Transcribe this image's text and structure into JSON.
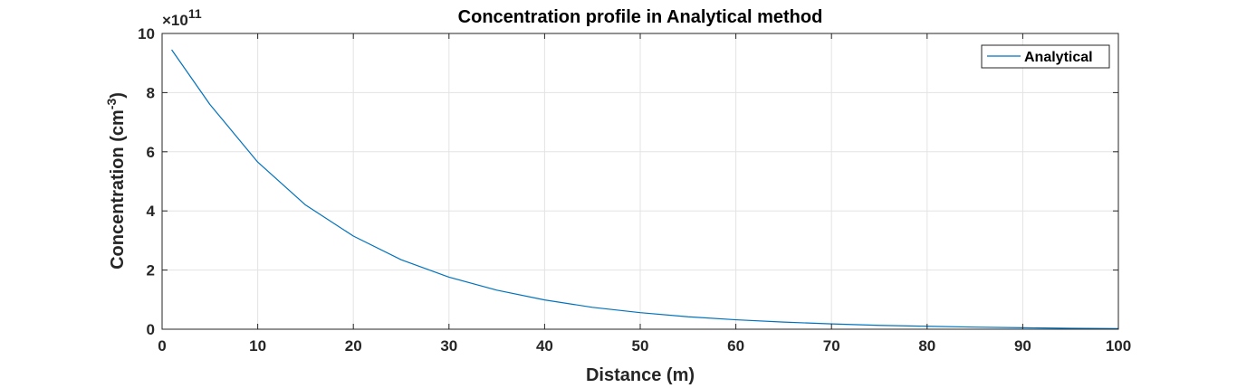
{
  "chart_data": {
    "type": "line",
    "title": "Concentration profile in Analytical method",
    "xlabel": "Distance (m)",
    "ylabel_main": "Concentration (cm",
    "ylabel_sup": "-3",
    "ylabel_close": ")",
    "y_exponent_prefix": "×10",
    "y_exponent_power": "11",
    "xlim": [
      0,
      100
    ],
    "ylim": [
      0,
      10
    ],
    "x_ticks": [
      "0",
      "10",
      "20",
      "30",
      "40",
      "50",
      "60",
      "70",
      "80",
      "90",
      "100"
    ],
    "y_ticks": [
      "0",
      "2",
      "4",
      "6",
      "8",
      "10"
    ],
    "grid": true,
    "legend_position": "top-right",
    "series": [
      {
        "name": "Analytical",
        "color": "#0072BD",
        "x": [
          1,
          5,
          10,
          15,
          20,
          25,
          30,
          35,
          40,
          45,
          50,
          55,
          60,
          65,
          70,
          75,
          80,
          85,
          90,
          95,
          100
        ],
        "y": [
          9.45,
          7.6,
          5.65,
          4.2,
          3.15,
          2.35,
          1.76,
          1.32,
          0.99,
          0.74,
          0.56,
          0.42,
          0.32,
          0.24,
          0.18,
          0.13,
          0.1,
          0.07,
          0.05,
          0.03,
          0.02
        ]
      }
    ]
  }
}
